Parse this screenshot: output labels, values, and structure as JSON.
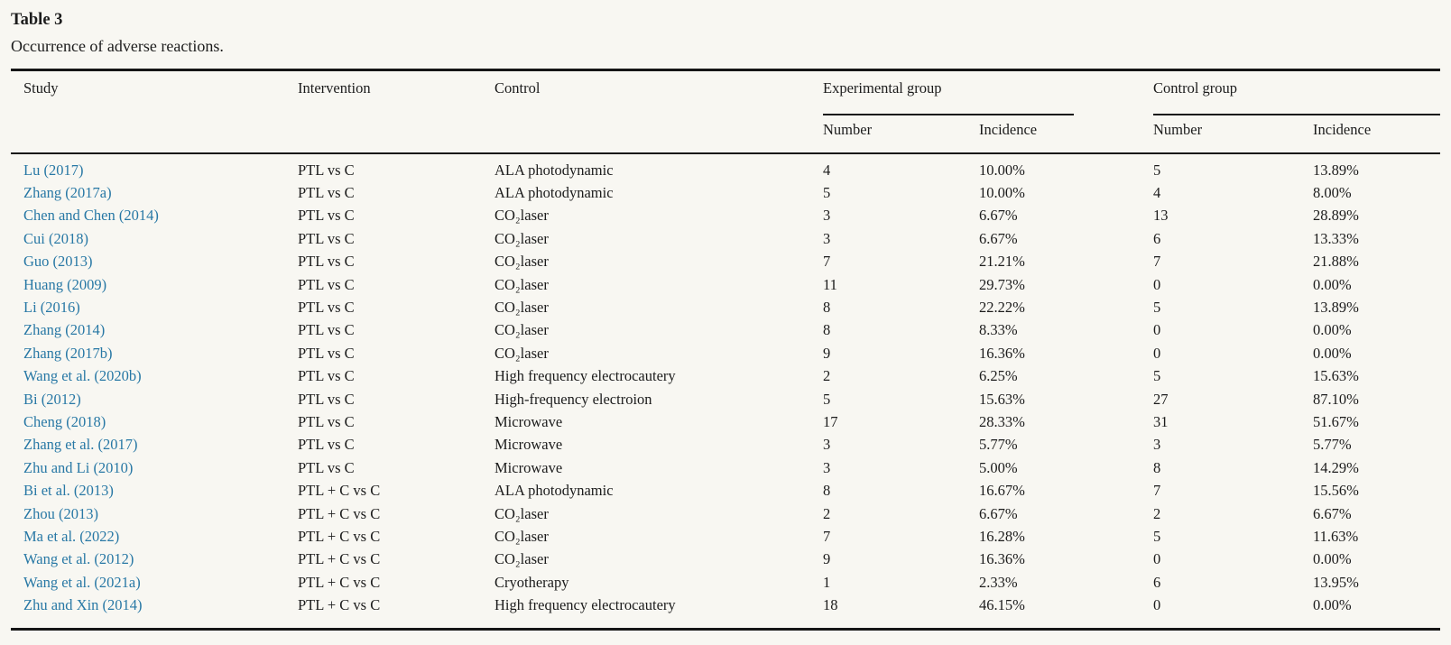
{
  "colors": {
    "background": "#f8f7f2",
    "rule": "#161616",
    "text": "#1c1c1c",
    "link": "#2878a5"
  },
  "table": {
    "label": "Table 3",
    "caption": "Occurrence of adverse reactions.",
    "columns": {
      "study": "Study",
      "intervention": "Intervention",
      "control": "Control",
      "experimental_group": "Experimental group",
      "control_group": "Control group",
      "number": "Number",
      "incidence": "Incidence"
    },
    "rows": [
      {
        "study": "Lu (2017)",
        "intervention": "PTL vs C",
        "control": "ALA photodynamic",
        "exp_number": "4",
        "exp_incidence": "10.00%",
        "ctrl_number": "5",
        "ctrl_incidence": "13.89%"
      },
      {
        "study": "Zhang (2017a)",
        "intervention": "PTL vs C",
        "control": "ALA photodynamic",
        "exp_number": "5",
        "exp_incidence": "10.00%",
        "ctrl_number": "4",
        "ctrl_incidence": "8.00%"
      },
      {
        "study": "Chen and Chen (2014)",
        "intervention": "PTL vs C",
        "control": "CO₂laser",
        "exp_number": "3",
        "exp_incidence": "6.67%",
        "ctrl_number": "13",
        "ctrl_incidence": "28.89%"
      },
      {
        "study": "Cui (2018)",
        "intervention": "PTL vs C",
        "control": "CO₂laser",
        "exp_number": "3",
        "exp_incidence": "6.67%",
        "ctrl_number": "6",
        "ctrl_incidence": "13.33%"
      },
      {
        "study": "Guo (2013)",
        "intervention": "PTL vs C",
        "control": "CO₂laser",
        "exp_number": "7",
        "exp_incidence": "21.21%",
        "ctrl_number": "7",
        "ctrl_incidence": "21.88%"
      },
      {
        "study": "Huang (2009)",
        "intervention": "PTL vs C",
        "control": "CO₂laser",
        "exp_number": "11",
        "exp_incidence": "29.73%",
        "ctrl_number": "0",
        "ctrl_incidence": "0.00%"
      },
      {
        "study": "Li (2016)",
        "intervention": "PTL vs C",
        "control": "CO₂laser",
        "exp_number": "8",
        "exp_incidence": "22.22%",
        "ctrl_number": "5",
        "ctrl_incidence": "13.89%"
      },
      {
        "study": "Zhang (2014)",
        "intervention": "PTL vs C",
        "control": "CO₂laser",
        "exp_number": "8",
        "exp_incidence": "8.33%",
        "ctrl_number": "0",
        "ctrl_incidence": "0.00%"
      },
      {
        "study": "Zhang (2017b)",
        "intervention": "PTL vs C",
        "control": "CO₂laser",
        "exp_number": "9",
        "exp_incidence": "16.36%",
        "ctrl_number": "0",
        "ctrl_incidence": "0.00%"
      },
      {
        "study": "Wang et al. (2020b)",
        "intervention": "PTL vs C",
        "control": "High frequency electrocautery",
        "exp_number": "2",
        "exp_incidence": "6.25%",
        "ctrl_number": "5",
        "ctrl_incidence": "15.63%"
      },
      {
        "study": "Bi (2012)",
        "intervention": "PTL vs C",
        "control": "High-frequency electroion",
        "exp_number": "5",
        "exp_incidence": "15.63%",
        "ctrl_number": "27",
        "ctrl_incidence": "87.10%"
      },
      {
        "study": "Cheng (2018)",
        "intervention": "PTL vs C",
        "control": "Microwave",
        "exp_number": "17",
        "exp_incidence": "28.33%",
        "ctrl_number": "31",
        "ctrl_incidence": "51.67%"
      },
      {
        "study": "Zhang et al. (2017)",
        "intervention": "PTL vs C",
        "control": "Microwave",
        "exp_number": "3",
        "exp_incidence": "5.77%",
        "ctrl_number": "3",
        "ctrl_incidence": "5.77%"
      },
      {
        "study": "Zhu and Li (2010)",
        "intervention": "PTL vs C",
        "control": "Microwave",
        "exp_number": "3",
        "exp_incidence": "5.00%",
        "ctrl_number": "8",
        "ctrl_incidence": "14.29%"
      },
      {
        "study": "Bi et al. (2013)",
        "intervention": "PTL + C vs C",
        "control": "ALA photodynamic",
        "exp_number": "8",
        "exp_incidence": "16.67%",
        "ctrl_number": "7",
        "ctrl_incidence": "15.56%"
      },
      {
        "study": "Zhou (2013)",
        "intervention": "PTL + C vs C",
        "control": "CO₂laser",
        "exp_number": "2",
        "exp_incidence": "6.67%",
        "ctrl_number": "2",
        "ctrl_incidence": "6.67%"
      },
      {
        "study": "Ma et al. (2022)",
        "intervention": "PTL + C vs C",
        "control": "CO₂laser",
        "exp_number": "7",
        "exp_incidence": "16.28%",
        "ctrl_number": "5",
        "ctrl_incidence": "11.63%"
      },
      {
        "study": "Wang et al. (2012)",
        "intervention": "PTL + C vs C",
        "control": "CO₂laser",
        "exp_number": "9",
        "exp_incidence": "16.36%",
        "ctrl_number": "0",
        "ctrl_incidence": "0.00%"
      },
      {
        "study": "Wang et al. (2021a)",
        "intervention": "PTL + C vs C",
        "control": "Cryotherapy",
        "exp_number": "1",
        "exp_incidence": "2.33%",
        "ctrl_number": "6",
        "ctrl_incidence": "13.95%"
      },
      {
        "study": "Zhu and Xin (2014)",
        "intervention": "PTL + C vs C",
        "control": "High frequency electrocautery",
        "exp_number": "18",
        "exp_incidence": "46.15%",
        "ctrl_number": "0",
        "ctrl_incidence": "0.00%"
      }
    ]
  }
}
